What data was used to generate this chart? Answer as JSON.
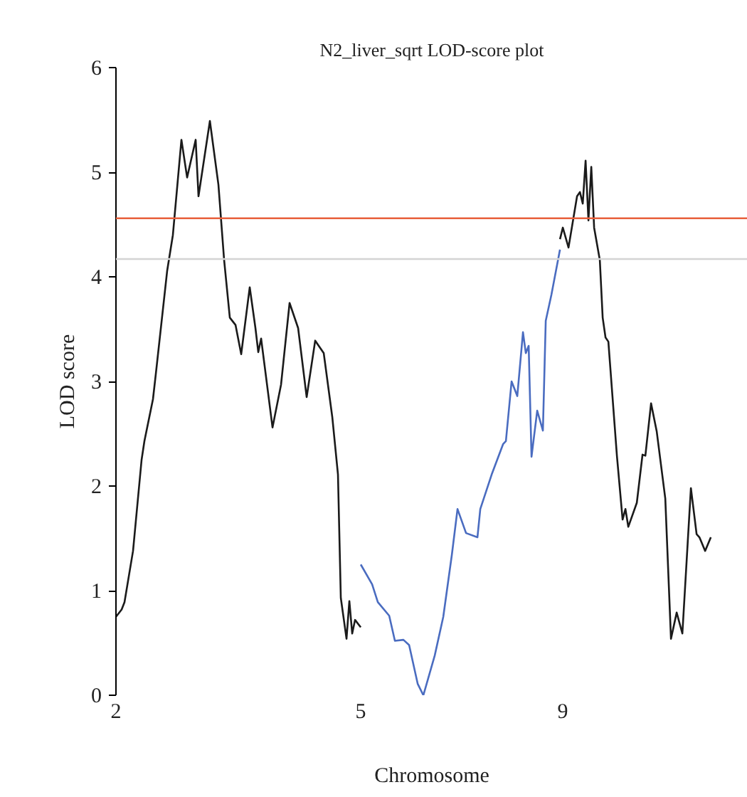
{
  "chart_data": {
    "type": "line",
    "title": "N2_liver_sqrt LOD-score plot",
    "xlabel": "Chromosome",
    "ylabel": "LOD score",
    "categories": [
      "2",
      null,
      null,
      null,
      null,
      null,
      null,
      null,
      null,
      null,
      null,
      null,
      null,
      null,
      null,
      null,
      null,
      null,
      null,
      null,
      null,
      null,
      null,
      null,
      null,
      null,
      null,
      null,
      null,
      null,
      null,
      null,
      null,
      null,
      null,
      null,
      null,
      null,
      null,
      null,
      null,
      null,
      null,
      null,
      null,
      null,
      null,
      null,
      null,
      null,
      null,
      null,
      null,
      null,
      null,
      null,
      null,
      null,
      null,
      null,
      null,
      null,
      null,
      null,
      null,
      null,
      null,
      null,
      null,
      null,
      null,
      null,
      null,
      null,
      null,
      null,
      null,
      null,
      null,
      null,
      null,
      null,
      null,
      null,
      null,
      null,
      "5",
      null,
      null,
      null,
      null,
      null,
      null,
      null,
      null,
      null,
      null,
      null,
      null,
      null,
      null,
      null,
      null,
      null,
      null,
      null,
      null,
      null,
      null,
      null,
      null,
      null,
      null,
      null,
      null,
      null,
      null,
      null,
      null,
      null,
      null,
      null,
      null,
      null,
      null,
      null,
      null,
      null,
      null,
      null,
      null,
      null,
      null,
      null,
      null,
      null,
      null,
      null,
      null,
      null,
      null,
      null,
      null,
      null,
      null,
      null,
      null,
      null,
      null,
      null,
      null,
      null,
      null,
      null,
      null,
      null,
      null,
      "9",
      null,
      null,
      null,
      null,
      null,
      null,
      null,
      null,
      null,
      null,
      null,
      null,
      null,
      null,
      null,
      null,
      null,
      null,
      null,
      null,
      null,
      null,
      null,
      null,
      null,
      null,
      null,
      null,
      null,
      null,
      null,
      null,
      null,
      null,
      null,
      null,
      null,
      null,
      null,
      null,
      null,
      null,
      null,
      null,
      null,
      null,
      null,
      null,
      null,
      null,
      null,
      null
    ],
    "ylim": [
      0,
      6
    ],
    "yticks": [
      0,
      1,
      2,
      3,
      4,
      5,
      6
    ],
    "grid": false,
    "marker": "none",
    "line_style": "solid",
    "ref_lines": [
      {
        "axis": "y",
        "value": 4.56,
        "label": null,
        "color": "#e8603c"
      },
      {
        "axis": "y",
        "value": 4.17,
        "label": null,
        "color": "#d4d4d4"
      }
    ],
    "series": [
      {
        "color": "#1a1a1a",
        "values": [
          0.75,
          null,
          0.82,
          0.89,
          null,
          null,
          1.38,
          null,
          null,
          2.25,
          2.43,
          null,
          null,
          2.83,
          3.07,
          null,
          null,
          null,
          4.06,
          null,
          4.4,
          null,
          null,
          5.31,
          null,
          4.95,
          null,
          null,
          5.31,
          4.77,
          null,
          null,
          null,
          5.49,
          null,
          null,
          4.88,
          null,
          4.16,
          null,
          3.61,
          null,
          3.54,
          null,
          3.26,
          null,
          null,
          3.9,
          null,
          3.51,
          3.28,
          3.41,
          null,
          null,
          null,
          2.56,
          null,
          null,
          2.97,
          null,
          null,
          3.75,
          null,
          null,
          3.51,
          null,
          null,
          2.85,
          null,
          null,
          3.39,
          null,
          null,
          3.27,
          null,
          null,
          2.66,
          null,
          2.11,
          0.93,
          null,
          0.54,
          0.9,
          0.59,
          0.72,
          null,
          0.65,
          null,
          null,
          null,
          null,
          null,
          null,
          null,
          null,
          null,
          null,
          null,
          null,
          null,
          null,
          null,
          null,
          null,
          null,
          null,
          null,
          null,
          null,
          null,
          null,
          null,
          null,
          null,
          null,
          null,
          null,
          null,
          null,
          null,
          null,
          null,
          null,
          null,
          null,
          null,
          null,
          null,
          null,
          null,
          null,
          null,
          null,
          null,
          null,
          null,
          null,
          null,
          null,
          null,
          null,
          null,
          null,
          null,
          null,
          null,
          null,
          null,
          null,
          null,
          null,
          null,
          null,
          null,
          null,
          null,
          null,
          null,
          null,
          null,
          null,
          null,
          null,
          null,
          null,
          null,
          null,
          null,
          null,
          null,
          null,
          null,
          null,
          null,
          null,
          null,
          null,
          null,
          null,
          null,
          null,
          null,
          null,
          null,
          null,
          null,
          null,
          null,
          null,
          null,
          null,
          null,
          null,
          null,
          null,
          null,
          null,
          null,
          null,
          null,
          null,
          null,
          null,
          null,
          null,
          null,
          null,
          null,
          null,
          null
        ]
      },
      {
        "color": "#4a6cc0",
        "values": [
          null,
          null,
          null,
          null,
          null,
          null,
          null,
          null,
          null,
          null,
          null,
          null,
          null,
          null,
          null,
          null,
          null,
          null,
          null,
          null,
          null,
          null,
          null,
          null,
          null,
          null,
          null,
          null,
          null,
          null,
          null,
          null,
          null,
          null,
          null,
          null,
          null,
          null,
          null,
          null,
          null,
          null,
          null,
          null,
          null,
          null,
          null,
          null,
          null,
          null,
          null,
          null,
          null,
          null,
          null,
          null,
          null,
          null,
          null,
          null,
          null,
          null,
          null,
          null,
          null,
          null,
          null,
          null,
          null,
          null,
          null,
          null,
          null,
          null,
          null,
          null,
          null,
          null,
          null,
          null,
          null,
          null,
          null,
          null,
          null,
          null,
          1.25,
          null,
          null,
          null,
          1.06,
          null,
          0.89,
          null,
          null,
          null,
          0.76,
          null,
          0.52,
          null,
          null,
          0.53,
          null,
          0.48,
          null,
          null,
          0.11,
          null,
          0.0,
          null,
          null,
          null,
          0.38,
          null,
          null,
          0.75,
          null,
          null,
          1.34,
          null,
          1.78,
          null,
          null,
          1.55,
          null,
          null,
          null,
          1.51,
          1.78,
          null,
          null,
          null,
          2.11,
          null,
          null,
          null,
          2.4,
          2.43,
          null,
          3.0,
          null,
          2.86,
          null,
          3.47,
          3.27,
          3.34,
          2.28,
          null,
          2.72,
          null,
          2.53,
          3.58,
          null,
          3.83,
          null,
          null,
          4.26,
          null,
          null,
          null,
          null,
          null,
          null,
          null,
          null,
          null,
          null,
          null,
          null,
          null,
          null,
          null,
          null,
          null,
          null,
          null,
          null,
          null,
          null,
          null,
          null,
          null,
          null,
          null,
          null,
          null,
          null,
          null,
          null,
          null,
          null,
          null,
          null,
          null,
          null,
          null,
          null,
          null,
          null,
          null,
          null,
          null,
          null,
          null,
          null,
          null,
          null,
          null,
          null,
          null
        ]
      },
      {
        "color": "#1a1a1a",
        "values": [
          null,
          null,
          null,
          null,
          null,
          null,
          null,
          null,
          null,
          null,
          null,
          null,
          null,
          null,
          null,
          null,
          null,
          null,
          null,
          null,
          null,
          null,
          null,
          null,
          null,
          null,
          null,
          null,
          null,
          null,
          null,
          null,
          null,
          null,
          null,
          null,
          null,
          null,
          null,
          null,
          null,
          null,
          null,
          null,
          null,
          null,
          null,
          null,
          null,
          null,
          null,
          null,
          null,
          null,
          null,
          null,
          null,
          null,
          null,
          null,
          null,
          null,
          null,
          null,
          null,
          null,
          null,
          null,
          null,
          null,
          null,
          null,
          null,
          null,
          null,
          null,
          null,
          null,
          null,
          null,
          null,
          null,
          null,
          null,
          null,
          null,
          null,
          null,
          null,
          null,
          null,
          null,
          null,
          null,
          null,
          null,
          null,
          null,
          null,
          null,
          null,
          null,
          null,
          null,
          null,
          null,
          null,
          null,
          null,
          null,
          null,
          null,
          null,
          null,
          null,
          null,
          null,
          null,
          null,
          null,
          null,
          null,
          null,
          null,
          null,
          null,
          null,
          null,
          null,
          null,
          null,
          null,
          null,
          null,
          null,
          null,
          null,
          null,
          null,
          null,
          null,
          null,
          null,
          null,
          null,
          null,
          null,
          null,
          null,
          null,
          null,
          null,
          null,
          null,
          null,
          null,
          4.36,
          4.47,
          null,
          4.28,
          null,
          null,
          4.77,
          4.81,
          4.7,
          5.11,
          4.54,
          5.05,
          4.47,
          null,
          4.16,
          3.61,
          3.42,
          3.38,
          null,
          null,
          2.29,
          null,
          1.68,
          1.78,
          1.61,
          null,
          null,
          1.84,
          null,
          2.3,
          2.29,
          null,
          2.79,
          null,
          2.52,
          null,
          null,
          1.88,
          null,
          0.54,
          null,
          0.79,
          null,
          0.59,
          null,
          null,
          1.98,
          null,
          1.54,
          1.51,
          null,
          1.38,
          null,
          1.51
        ]
      }
    ]
  }
}
